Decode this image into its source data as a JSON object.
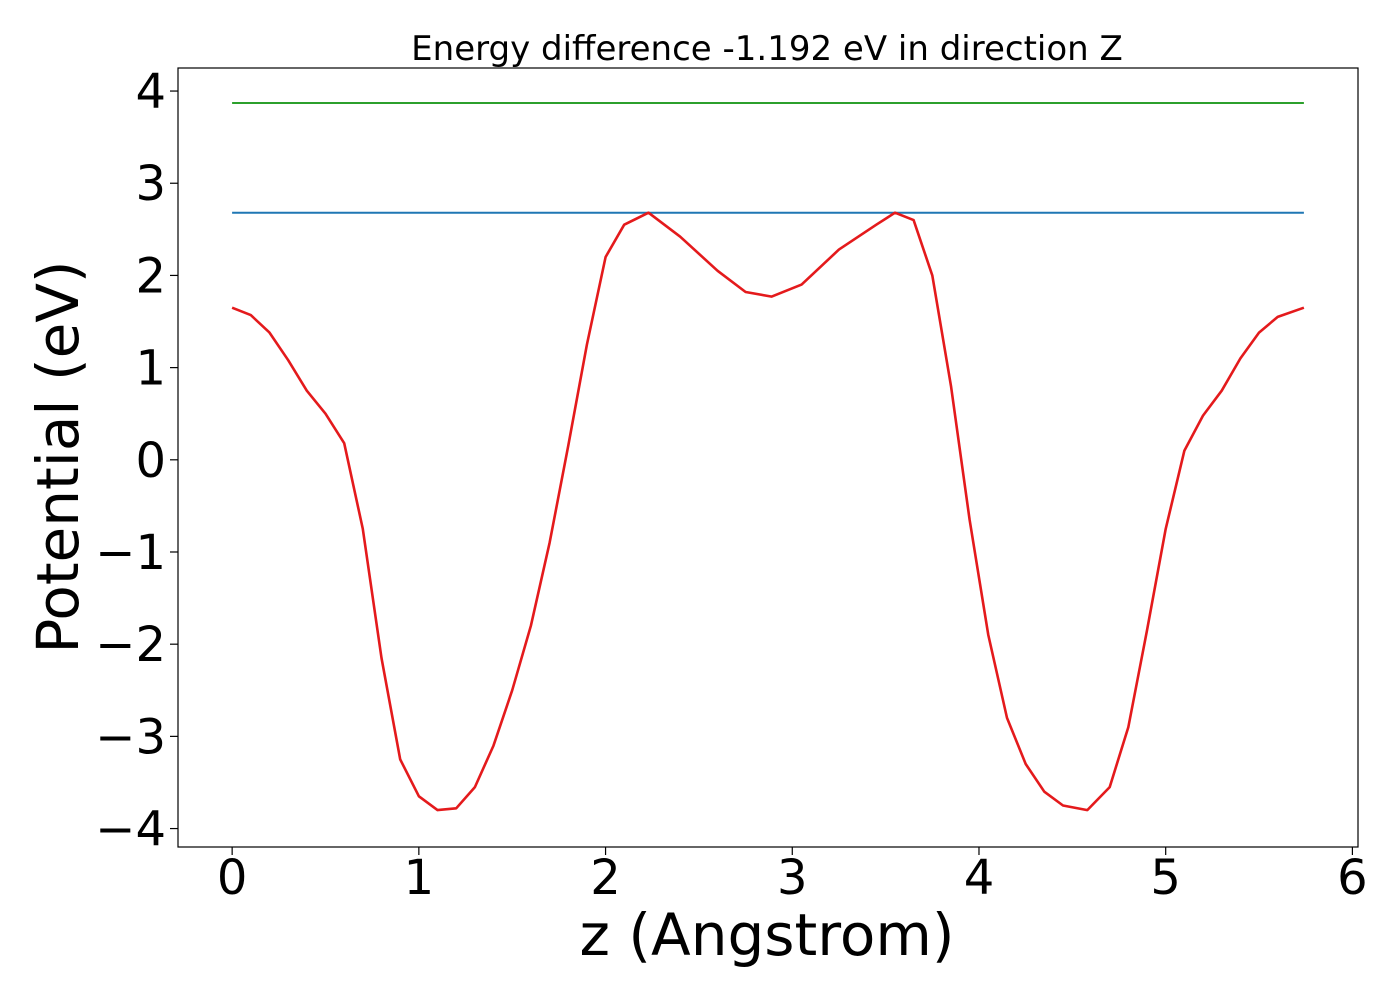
{
  "chart_data": {
    "type": "line",
    "title": "Energy difference -1.192 eV in direction Z",
    "xlabel": "z (Angstrom)",
    "ylabel": "Potential (eV)",
    "xlim": [
      -0.29,
      6.03
    ],
    "ylim": [
      -4.2,
      4.25
    ],
    "xticks": [
      0,
      1,
      2,
      3,
      4,
      5,
      6
    ],
    "yticks": [
      -4,
      -3,
      -2,
      -1,
      0,
      1,
      2,
      3,
      4
    ],
    "xtick_labels": [
      "0",
      "1",
      "2",
      "3",
      "4",
      "5",
      "6"
    ],
    "ytick_labels": [
      "−4",
      "−3",
      "−2",
      "−1",
      "0",
      "1",
      "2",
      "3",
      "4"
    ],
    "grid": false,
    "series": [
      {
        "color": "#2ca02c",
        "x": [
          0,
          5.74
        ],
        "y": [
          3.87,
          3.87
        ]
      },
      {
        "color": "#1f77b4",
        "x": [
          0,
          5.74
        ],
        "y": [
          2.68,
          2.68
        ]
      },
      {
        "color": "#e41a1c",
        "x": [
          0,
          0.1,
          0.2,
          0.3,
          0.4,
          0.5,
          0.6,
          0.7,
          0.8,
          0.9,
          1.0,
          1.1,
          1.2,
          1.3,
          1.4,
          1.5,
          1.6,
          1.7,
          1.8,
          1.9,
          2.0,
          2.1,
          2.23,
          2.4,
          2.6,
          2.75,
          2.89,
          3.05,
          3.25,
          3.45,
          3.55,
          3.65,
          3.75,
          3.85,
          3.95,
          4.05,
          4.15,
          4.25,
          4.35,
          4.45,
          4.58,
          4.7,
          4.8,
          4.9,
          5.0,
          5.1,
          5.2,
          5.3,
          5.4,
          5.5,
          5.6,
          5.74
        ],
        "y": [
          1.65,
          1.57,
          1.38,
          1.08,
          0.75,
          0.5,
          0.18,
          -0.75,
          -2.15,
          -3.25,
          -3.65,
          -3.8,
          -3.78,
          -3.55,
          -3.1,
          -2.5,
          -1.8,
          -0.9,
          0.15,
          1.25,
          2.2,
          2.55,
          2.68,
          2.42,
          2.05,
          1.82,
          1.77,
          1.9,
          2.28,
          2.55,
          2.68,
          2.6,
          2.0,
          0.8,
          -0.65,
          -1.9,
          -2.8,
          -3.3,
          -3.6,
          -3.75,
          -3.8,
          -3.55,
          -2.9,
          -1.85,
          -0.75,
          0.1,
          0.48,
          0.75,
          1.1,
          1.38,
          1.55,
          1.65
        ]
      }
    ]
  }
}
